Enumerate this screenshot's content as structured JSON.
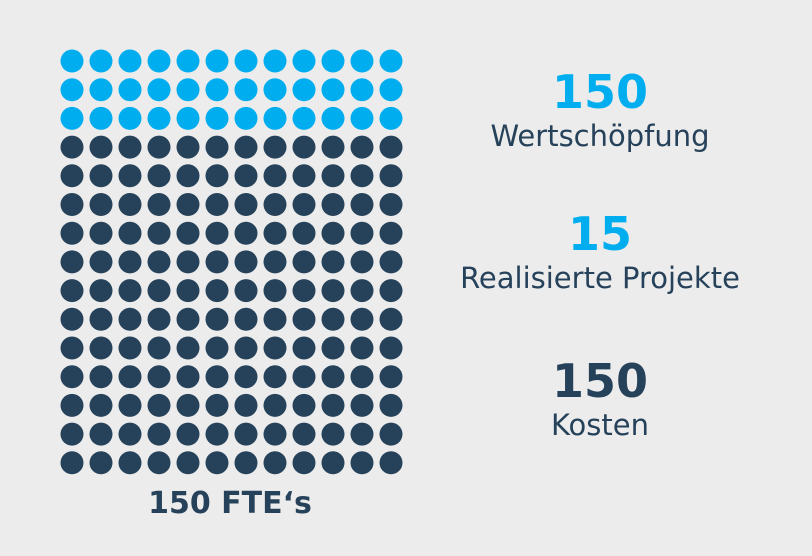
{
  "grid": {
    "columns": 12,
    "rows": 15,
    "highlighted_rows": 3,
    "highlight_color": "#00aeef",
    "base_color": "#26425a"
  },
  "caption": "150 FTE‘s",
  "stats": [
    {
      "value": "150",
      "label": "Wertschöpfung",
      "color": "#00aeef"
    },
    {
      "value": "15",
      "label": "Realisierte Projekte",
      "color": "#00aeef"
    },
    {
      "value": "150",
      "label": "Kosten",
      "color": "#26425a"
    }
  ]
}
